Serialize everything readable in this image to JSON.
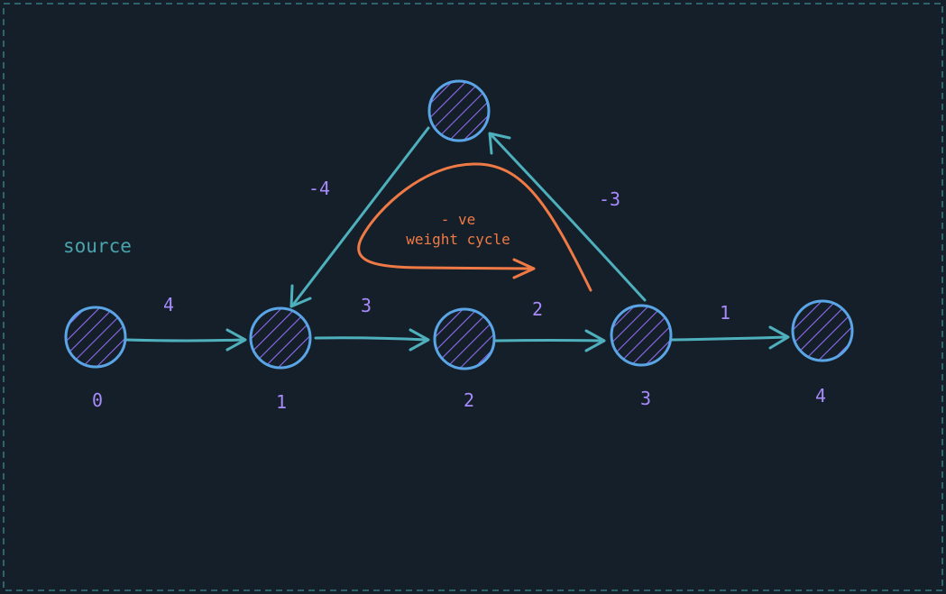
{
  "annotation": {
    "source_label": "source",
    "cycle_line1": "- ve",
    "cycle_line2": "weight cycle"
  },
  "nodes": [
    {
      "id": "0",
      "label": "0"
    },
    {
      "id": "1",
      "label": "1"
    },
    {
      "id": "2",
      "label": "2"
    },
    {
      "id": "3",
      "label": "3"
    },
    {
      "id": "4",
      "label": "4"
    },
    {
      "id": "top",
      "label": ""
    }
  ],
  "edges": [
    {
      "from": "0",
      "to": "1",
      "weight": "4"
    },
    {
      "from": "1",
      "to": "2",
      "weight": "3"
    },
    {
      "from": "2",
      "to": "3",
      "weight": "2"
    },
    {
      "from": "3",
      "to": "4",
      "weight": "1"
    },
    {
      "from": "3",
      "to": "top",
      "weight": "-3"
    },
    {
      "from": "top",
      "to": "1",
      "weight": "-4"
    }
  ],
  "colors": {
    "background": "#141f29",
    "frame": "#3e8a91",
    "node_stroke": "#5aa5e6",
    "node_hatch": "#8e6cf0",
    "edge": "#4fb0bd",
    "label": "#a78bfa",
    "source_text": "#4aa3ad",
    "cycle": "#f07a45"
  }
}
